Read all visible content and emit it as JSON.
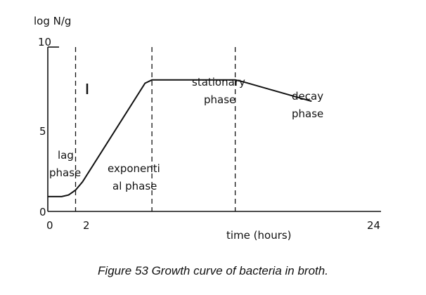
{
  "chart_data": {
    "type": "line",
    "xlabel": "time (hours)",
    "ylabel": "log N/g",
    "xlim": [
      0,
      24
    ],
    "ylim": [
      0,
      10
    ],
    "x_ticks": [
      "0",
      "2",
      "24"
    ],
    "y_ticks": [
      "0",
      "5",
      "10"
    ],
    "grid": false,
    "series": [
      {
        "x": [
          0,
          1,
          1.5,
          2,
          2.5,
          7,
          7.5,
          13.5,
          14,
          19
        ],
        "y": [
          0.9,
          0.9,
          1.0,
          1.3,
          1.8,
          7.8,
          8.0,
          8.0,
          7.9,
          6.7
        ]
      }
    ],
    "phase_boundaries_x": [
      2,
      7.5,
      13.5
    ],
    "phases": [
      {
        "lines": [
          "lag",
          "phase"
        ]
      },
      {
        "lines": [
          "exponenti",
          "al phase"
        ]
      },
      {
        "lines": [
          "stationary",
          "phase"
        ]
      },
      {
        "lines": [
          "decay",
          "phase"
        ]
      }
    ]
  },
  "caption": "Figure 53 Growth curve of bacteria in broth."
}
